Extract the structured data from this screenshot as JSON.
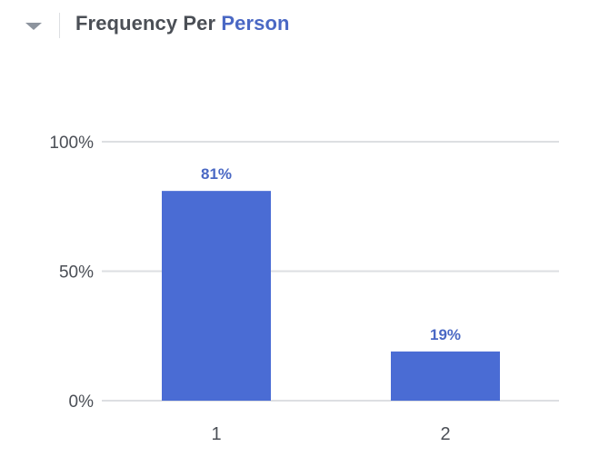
{
  "header": {
    "title_main": "Frequency Per",
    "title_accent": "Person"
  },
  "icons": {
    "collapse": "caret-down-icon"
  },
  "colors": {
    "accent": "#4a68c4",
    "bar": "#4a6cd4",
    "data_label": "#4a68c4",
    "title": "#4b4f56",
    "axis_text": "#4b4f56",
    "gridline": "#dddfe2"
  },
  "chart_data": {
    "type": "bar",
    "title": "Frequency Per Person",
    "categories": [
      "1",
      "2"
    ],
    "values": [
      81,
      19
    ],
    "data_labels": [
      "81%",
      "19%"
    ],
    "ylim": [
      0,
      100
    ],
    "y_ticks": [
      0,
      50,
      100
    ],
    "y_tick_labels": [
      "0%",
      "50%",
      "100%"
    ],
    "grid": true,
    "legend": "none"
  }
}
